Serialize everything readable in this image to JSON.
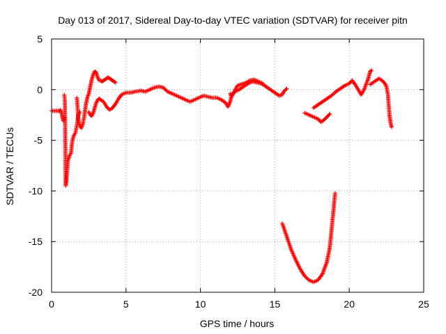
{
  "chart_data": {
    "type": "scatter",
    "title": "Day 013 of 2017, Sidereal Day-to-day VTEC variation (SDTVAR) for receiver pitn",
    "xlabel": "GPS time / hours",
    "ylabel": "SDTVAR / TECUs",
    "xlim": [
      0,
      25
    ],
    "ylim": [
      -20,
      5
    ],
    "xticks": [
      0,
      5,
      10,
      15,
      20,
      25
    ],
    "yticks": [
      -20,
      -15,
      -10,
      -5,
      0,
      5
    ],
    "xtick_labels": [
      "0",
      "5",
      "10",
      "15",
      "20",
      "25"
    ],
    "ytick_labels": [
      "-20",
      "-15",
      "-10",
      "-5",
      "0",
      "5"
    ],
    "grid": true,
    "marker": "+",
    "color": "#ff0000",
    "series": [
      {
        "name": "SDTVAR",
        "segments": [
          [
            [
              0.0,
              -2.1
            ],
            [
              0.5,
              -2.1
            ]
          ],
          [
            [
              0.55,
              -2.1
            ],
            [
              0.6,
              -2.0
            ],
            [
              0.65,
              -2.2
            ],
            [
              0.7,
              -2.5
            ],
            [
              0.75,
              -2.9
            ],
            [
              0.8,
              -3.1
            ],
            [
              0.85,
              -2.8
            ]
          ],
          [
            [
              0.85,
              -0.5
            ],
            [
              0.9,
              -1.2
            ],
            [
              0.95,
              -9.5
            ],
            [
              1.0,
              -9.0
            ],
            [
              1.05,
              -8.0
            ],
            [
              1.1,
              -7.0
            ],
            [
              1.15,
              -6.8
            ],
            [
              1.2,
              -6.5
            ],
            [
              1.3,
              -6.3
            ],
            [
              1.4,
              -5.0
            ],
            [
              1.5,
              -4.5
            ],
            [
              1.6,
              -4.3
            ],
            [
              1.7,
              -3.5
            ],
            [
              1.8,
              -2.5
            ],
            [
              1.9,
              -2.2
            ]
          ],
          [
            [
              1.7,
              -0.8
            ],
            [
              1.75,
              -1.8
            ],
            [
              1.8,
              -3.0
            ],
            [
              1.9,
              -3.6
            ],
            [
              2.0,
              -3.8
            ],
            [
              2.1,
              -3.4
            ],
            [
              2.2,
              -2.6
            ],
            [
              2.3,
              -1.5
            ],
            [
              2.4,
              -0.8
            ],
            [
              2.5,
              -0.4
            ],
            [
              2.6,
              0.3
            ],
            [
              2.7,
              1.0
            ],
            [
              2.8,
              1.5
            ],
            [
              2.9,
              1.8
            ],
            [
              3.0,
              1.7
            ],
            [
              3.1,
              1.2
            ],
            [
              3.2,
              0.9
            ],
            [
              3.3,
              0.9
            ],
            [
              3.4,
              0.8
            ],
            [
              3.5,
              0.9
            ],
            [
              3.6,
              1.0
            ],
            [
              3.7,
              1.1
            ],
            [
              3.8,
              1.2
            ],
            [
              3.9,
              1.1
            ],
            [
              4.0,
              1.0
            ],
            [
              4.1,
              0.9
            ],
            [
              4.2,
              0.8
            ],
            [
              4.3,
              0.7
            ]
          ],
          [
            [
              2.5,
              -2.2
            ],
            [
              2.6,
              -2.5
            ],
            [
              2.7,
              -2.6
            ],
            [
              2.8,
              -2.3
            ],
            [
              2.9,
              -1.8
            ],
            [
              3.0,
              -1.3
            ],
            [
              3.1,
              -1.0
            ],
            [
              3.2,
              -0.9
            ],
            [
              3.3,
              -1.0
            ],
            [
              3.5,
              -1.2
            ],
            [
              3.7,
              -1.7
            ],
            [
              3.9,
              -2.0
            ],
            [
              4.1,
              -1.8
            ],
            [
              4.3,
              -1.4
            ],
            [
              4.5,
              -0.9
            ],
            [
              4.7,
              -0.5
            ],
            [
              5.0,
              -0.3
            ],
            [
              5.3,
              -0.3
            ],
            [
              5.6,
              -0.2
            ],
            [
              6.0,
              -0.1
            ],
            [
              6.3,
              -0.2
            ],
            [
              6.6,
              0.0
            ],
            [
              6.9,
              0.2
            ],
            [
              7.2,
              0.3
            ],
            [
              7.5,
              0.2
            ],
            [
              7.8,
              -0.2
            ],
            [
              8.1,
              -0.4
            ],
            [
              8.4,
              -0.6
            ],
            [
              8.7,
              -0.8
            ],
            [
              9.0,
              -1.0
            ],
            [
              9.3,
              -1.2
            ],
            [
              9.6,
              -1.0
            ],
            [
              9.9,
              -0.8
            ],
            [
              10.2,
              -0.6
            ],
            [
              10.5,
              -0.7
            ],
            [
              10.8,
              -0.8
            ],
            [
              11.1,
              -0.8
            ],
            [
              11.4,
              -1.0
            ],
            [
              11.7,
              -1.3
            ],
            [
              11.85,
              -1.7
            ],
            [
              12.0,
              -1.2
            ],
            [
              12.1,
              -0.5
            ],
            [
              12.3,
              -0.2
            ],
            [
              12.6,
              0.0
            ],
            [
              12.9,
              0.3
            ],
            [
              13.2,
              0.6
            ],
            [
              13.5,
              0.8
            ],
            [
              13.8,
              0.7
            ],
            [
              14.1,
              0.6
            ],
            [
              14.4,
              0.3
            ],
            [
              14.7,
              0.0
            ],
            [
              15.0,
              -0.3
            ],
            [
              15.3,
              -0.6
            ],
            [
              15.5,
              -0.5
            ],
            [
              15.6,
              -0.2
            ],
            [
              15.8,
              0.1
            ]
          ],
          [
            [
              12.0,
              -0.4
            ],
            [
              12.1,
              -0.7
            ],
            [
              12.25,
              -0.3
            ],
            [
              12.4,
              0.2
            ],
            [
              12.5,
              0.4
            ],
            [
              12.7,
              0.5
            ],
            [
              12.9,
              0.6
            ],
            [
              13.1,
              0.7
            ],
            [
              13.3,
              0.9
            ],
            [
              13.6,
              1.0
            ],
            [
              13.9,
              0.8
            ],
            [
              14.2,
              0.6
            ]
          ],
          [
            [
              15.5,
              -13.2
            ],
            [
              15.8,
              -14.5
            ],
            [
              16.1,
              -15.8
            ],
            [
              16.4,
              -16.8
            ],
            [
              16.7,
              -17.7
            ],
            [
              17.0,
              -18.4
            ],
            [
              17.3,
              -18.8
            ],
            [
              17.6,
              -19.0
            ],
            [
              17.9,
              -18.8
            ],
            [
              18.2,
              -18.2
            ],
            [
              18.5,
              -17.0
            ],
            [
              18.7,
              -15.5
            ],
            [
              18.8,
              -14.0
            ],
            [
              18.9,
              -12.5
            ],
            [
              19.0,
              -11.0
            ],
            [
              19.05,
              -10.2
            ]
          ],
          [
            [
              17.0,
              -2.3
            ],
            [
              17.3,
              -2.5
            ],
            [
              17.6,
              -2.7
            ],
            [
              17.9,
              -2.9
            ],
            [
              18.1,
              -3.2
            ],
            [
              18.3,
              -3.0
            ],
            [
              18.5,
              -2.7
            ],
            [
              18.7,
              -2.4
            ]
          ],
          [
            [
              17.6,
              -1.8
            ],
            [
              17.9,
              -1.5
            ],
            [
              18.2,
              -1.2
            ],
            [
              18.5,
              -0.9
            ],
            [
              18.8,
              -0.6
            ],
            [
              19.1,
              -0.2
            ],
            [
              19.4,
              0.1
            ],
            [
              19.7,
              0.4
            ],
            [
              20.0,
              0.6
            ],
            [
              20.2,
              0.9
            ],
            [
              20.4,
              0.5
            ],
            [
              20.6,
              0.0
            ],
            [
              20.8,
              -0.5
            ],
            [
              21.0,
              0.0
            ],
            [
              21.2,
              0.8
            ],
            [
              21.3,
              1.2
            ],
            [
              21.4,
              1.8
            ],
            [
              21.5,
              1.9
            ]
          ],
          [
            [
              21.4,
              0.5
            ],
            [
              21.6,
              0.7
            ],
            [
              21.8,
              0.9
            ],
            [
              22.0,
              1.1
            ],
            [
              22.2,
              0.9
            ],
            [
              22.4,
              0.6
            ],
            [
              22.5,
              0.3
            ],
            [
              22.6,
              -0.5
            ],
            [
              22.65,
              -1.5
            ],
            [
              22.7,
              -2.5
            ],
            [
              22.75,
              -3.0
            ],
            [
              22.8,
              -3.5
            ],
            [
              22.85,
              -3.7
            ]
          ]
        ]
      }
    ]
  }
}
